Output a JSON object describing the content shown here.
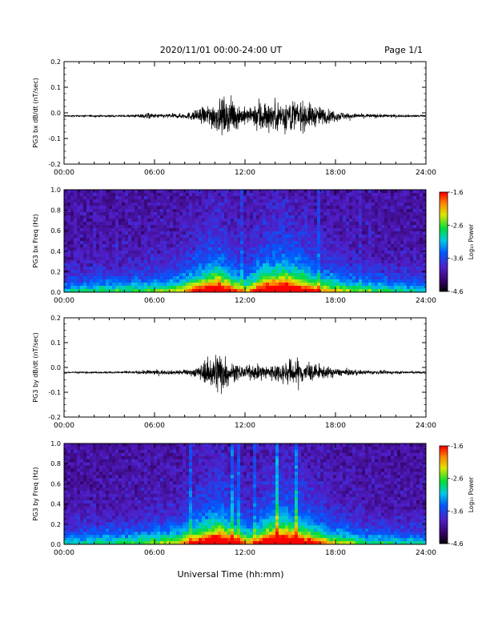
{
  "header": {
    "title": "2020/11/01  00:00-24:00 UT",
    "page": "Page 1/1"
  },
  "chart_data": [
    {
      "type": "line",
      "ylabel": "PG3 bx dB/dt (nT/sec)",
      "x_range": [
        0,
        24
      ],
      "ylim": [
        -0.2,
        0.2
      ],
      "yticks": [
        "0.2",
        "0.1",
        "0.0",
        "-0.1",
        "-0.2"
      ],
      "xticks": [
        "00:00",
        "06:00",
        "12:00",
        "18:00",
        "24:00"
      ],
      "baseline": -0.012,
      "envelope": [
        {
          "x": 0,
          "amp": 0.004
        },
        {
          "x": 4.5,
          "amp": 0.006
        },
        {
          "x": 5.6,
          "amp": 0.02
        },
        {
          "x": 6.0,
          "amp": 0.012
        },
        {
          "x": 8.0,
          "amp": 0.015
        },
        {
          "x": 9.0,
          "amp": 0.04
        },
        {
          "x": 10.0,
          "amp": 0.09
        },
        {
          "x": 11.0,
          "amp": 0.1
        },
        {
          "x": 12.0,
          "amp": 0.05
        },
        {
          "x": 12.5,
          "amp": 0.04
        },
        {
          "x": 13.0,
          "amp": 0.12
        },
        {
          "x": 13.6,
          "amp": 0.08
        },
        {
          "x": 15.0,
          "amp": 0.1
        },
        {
          "x": 16.0,
          "amp": 0.08
        },
        {
          "x": 17.5,
          "amp": 0.04
        },
        {
          "x": 19.0,
          "amp": 0.015
        },
        {
          "x": 22.0,
          "amp": 0.008
        },
        {
          "x": 24.0,
          "amp": 0.005
        }
      ]
    },
    {
      "type": "heatmap",
      "ylabel": "PG3 bx Freq (Hz)",
      "x_range": [
        0,
        24
      ],
      "ylim": [
        0,
        1.0
      ],
      "yticks": [
        "1.0",
        "0.8",
        "0.6",
        "0.4",
        "0.2",
        "0.0"
      ],
      "xticks": [
        "00:00",
        "06:00",
        "12:00",
        "18:00",
        "24:00"
      ],
      "colorbar": {
        "label": "Log₁₀ Power",
        "ticks": [
          "-1.6",
          "-2.6",
          "-3.6",
          "-4.6"
        ],
        "range": [
          -4.6,
          -1.6
        ]
      },
      "activity": [
        {
          "x": 0,
          "v": 0.05
        },
        {
          "x": 5.0,
          "v": 0.15
        },
        {
          "x": 7.5,
          "v": 0.25
        },
        {
          "x": 9.5,
          "v": 0.7
        },
        {
          "x": 10.2,
          "v": 0.85
        },
        {
          "x": 11.0,
          "v": 0.55
        },
        {
          "x": 12.0,
          "v": 0.3
        },
        {
          "x": 13.5,
          "v": 0.8
        },
        {
          "x": 14.5,
          "v": 0.9
        },
        {
          "x": 15.5,
          "v": 0.75
        },
        {
          "x": 17.0,
          "v": 0.4
        },
        {
          "x": 20.0,
          "v": 0.15
        },
        {
          "x": 24.0,
          "v": 0.05
        }
      ]
    },
    {
      "type": "line",
      "ylabel": "PG3 by dB/dt (nT/sec)",
      "x_range": [
        0,
        24
      ],
      "ylim": [
        -0.2,
        0.2
      ],
      "yticks": [
        "0.2",
        "0.1",
        "0.0",
        "-0.1",
        "-0.2"
      ],
      "xticks": [
        "00:00",
        "06:00",
        "12:00",
        "18:00",
        "24:00"
      ],
      "baseline": -0.02,
      "envelope": [
        {
          "x": 0,
          "amp": 0.004
        },
        {
          "x": 4.5,
          "amp": 0.006
        },
        {
          "x": 5.6,
          "amp": 0.015
        },
        {
          "x": 7.0,
          "amp": 0.012
        },
        {
          "x": 8.5,
          "amp": 0.02
        },
        {
          "x": 9.5,
          "amp": 0.07
        },
        {
          "x": 10.3,
          "amp": 0.15
        },
        {
          "x": 11.0,
          "amp": 0.06
        },
        {
          "x": 12.0,
          "amp": 0.035
        },
        {
          "x": 13.0,
          "amp": 0.045
        },
        {
          "x": 14.5,
          "amp": 0.06
        },
        {
          "x": 15.3,
          "amp": 0.09
        },
        {
          "x": 16.5,
          "amp": 0.05
        },
        {
          "x": 18.0,
          "amp": 0.025
        },
        {
          "x": 20.0,
          "amp": 0.012
        },
        {
          "x": 24.0,
          "amp": 0.006
        }
      ]
    },
    {
      "type": "heatmap",
      "ylabel": "PG3 by Freq (Hz)",
      "x_range": [
        0,
        24
      ],
      "ylim": [
        0,
        1.0
      ],
      "yticks": [
        "1.0",
        "0.8",
        "0.6",
        "0.4",
        "0.2",
        "0.0"
      ],
      "xticks": [
        "00:00",
        "06:00",
        "12:00",
        "18:00",
        "24:00"
      ],
      "colorbar": {
        "label": "Log₁₀ Power",
        "ticks": [
          "-1.6",
          "-2.6",
          "-3.6",
          "-4.6"
        ],
        "range": [
          -4.6,
          -1.6
        ]
      },
      "activity": [
        {
          "x": 0,
          "v": 0.05
        },
        {
          "x": 4.5,
          "v": 0.15
        },
        {
          "x": 7.5,
          "v": 0.3
        },
        {
          "x": 9.5,
          "v": 0.75
        },
        {
          "x": 10.3,
          "v": 0.9
        },
        {
          "x": 11.2,
          "v": 0.6
        },
        {
          "x": 12.3,
          "v": 0.35
        },
        {
          "x": 13.8,
          "v": 0.85
        },
        {
          "x": 14.8,
          "v": 0.9
        },
        {
          "x": 16.0,
          "v": 0.65
        },
        {
          "x": 17.5,
          "v": 0.35
        },
        {
          "x": 20.0,
          "v": 0.12
        },
        {
          "x": 24.0,
          "v": 0.05
        }
      ]
    }
  ],
  "footer": {
    "xlabel": "Universal Time (hh:mm)"
  }
}
